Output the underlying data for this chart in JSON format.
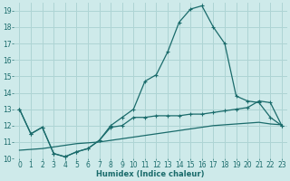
{
  "xlabel": "Humidex (Indice chaleur)",
  "bg_color": "#ceeaea",
  "grid_color": "#aed4d4",
  "line_color": "#1a6b6b",
  "xlim": [
    -0.5,
    23.5
  ],
  "ylim": [
    10,
    19.5
  ],
  "xticks": [
    0,
    1,
    2,
    3,
    4,
    5,
    6,
    7,
    8,
    9,
    10,
    11,
    12,
    13,
    14,
    15,
    16,
    17,
    18,
    19,
    20,
    21,
    22,
    23
  ],
  "yticks": [
    10,
    11,
    12,
    13,
    14,
    15,
    16,
    17,
    18,
    19
  ],
  "line2_x": [
    0,
    1,
    2,
    3,
    4,
    5,
    6,
    7,
    8,
    9,
    10,
    11,
    12,
    13,
    14,
    15,
    16,
    17,
    18,
    19,
    20,
    21,
    22,
    23
  ],
  "line2_y": [
    13.0,
    11.5,
    11.9,
    10.3,
    10.1,
    10.4,
    10.6,
    11.1,
    12.0,
    12.5,
    13.0,
    14.7,
    15.1,
    16.5,
    18.3,
    19.1,
    19.3,
    18.0,
    17.0,
    13.8,
    13.5,
    13.4,
    12.5,
    12.0
  ],
  "line1_x": [
    0,
    1,
    2,
    3,
    4,
    5,
    6,
    7,
    8,
    9,
    10,
    11,
    12,
    13,
    14,
    15,
    16,
    17,
    18,
    19,
    20,
    21,
    22,
    23
  ],
  "line1_y": [
    13.0,
    11.5,
    11.9,
    10.3,
    10.1,
    10.4,
    10.6,
    11.1,
    11.9,
    12.0,
    12.5,
    12.5,
    12.6,
    12.6,
    12.6,
    12.7,
    12.7,
    12.8,
    12.9,
    13.0,
    13.1,
    13.5,
    13.4,
    12.0
  ],
  "line3_x": [
    0,
    1,
    2,
    3,
    4,
    5,
    6,
    7,
    8,
    9,
    10,
    11,
    12,
    13,
    14,
    15,
    16,
    17,
    18,
    19,
    20,
    21,
    22,
    23
  ],
  "line3_y": [
    10.5,
    10.55,
    10.6,
    10.7,
    10.8,
    10.9,
    10.95,
    11.0,
    11.1,
    11.2,
    11.3,
    11.4,
    11.5,
    11.6,
    11.7,
    11.8,
    11.9,
    12.0,
    12.05,
    12.1,
    12.15,
    12.2,
    12.1,
    12.05
  ],
  "tick_fontsize": 5.5,
  "xlabel_fontsize": 6.0
}
